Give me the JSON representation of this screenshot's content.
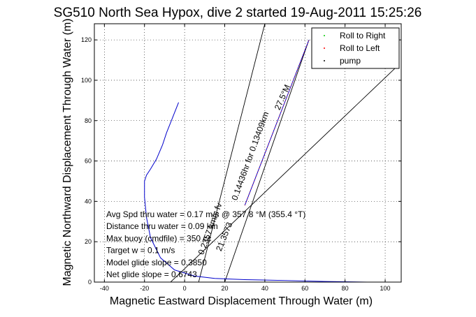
{
  "chart_data": {
    "type": "line",
    "title": "SG510 North Sea Hypox, dive 2 started 19-Aug-2011 15:25:26",
    "xlabel": "Magnetic Eastward Displacement Through Water (m)",
    "ylabel": "Magnetic Northward Displacement Through Water (m)",
    "xlim": [
      -45,
      108
    ],
    "ylim": [
      0,
      128
    ],
    "xticks": [
      -40,
      -20,
      0,
      20,
      40,
      60,
      80,
      100
    ],
    "yticks": [
      0,
      20,
      40,
      60,
      80,
      100,
      120
    ],
    "grid": true,
    "legend_placement": "top-right",
    "legend": [
      {
        "label": "Roll to Right",
        "color": "#00cc00"
      },
      {
        "label": "Roll to Left",
        "color": "#ff0000"
      },
      {
        "label": "pump",
        "color": "#000000"
      }
    ],
    "series": [
      {
        "color": "#0000cc",
        "x": [
          91,
          70,
          50,
          30,
          15,
          5,
          -5,
          -12,
          -17,
          -19,
          -20,
          -20,
          -19,
          -17,
          -14,
          -11,
          -9,
          -7,
          -5,
          -3
        ],
        "y": [
          0,
          0.3,
          0.8,
          1.2,
          1.8,
          3,
          6,
          12,
          22,
          32,
          42,
          50,
          53,
          56,
          61,
          68,
          74,
          79,
          84,
          89
        ]
      },
      {
        "color": "#0000cc",
        "x": [
          30,
          62
        ],
        "y": [
          38,
          120
        ]
      }
    ],
    "reference_lines": [
      {
        "color": "#000000",
        "x": [
          7,
          40
        ],
        "y": [
          0,
          128
        ]
      },
      {
        "color": "#000000",
        "x": [
          -7,
          105
        ],
        "y": [
          0,
          106
        ]
      },
      {
        "color": "#000000",
        "x": [
          20,
          62
        ],
        "y": [
          0,
          120
        ]
      }
    ],
    "annotations": [
      {
        "text": "27.5°M",
        "x": 50,
        "y": 91,
        "angle": -66
      },
      {
        "text": "0.14436hr for 0.13409km",
        "x": 34,
        "y": 62,
        "angle": -70
      },
      {
        "text": "0.2357 km/s fv",
        "x": 14,
        "y": 26,
        "angle": -70
      },
      {
        "text": "21.3573",
        "x": 21,
        "y": 22,
        "angle": -68
      }
    ],
    "info_lines": [
      "Avg Spd thru water = 0.17 m/s @ 357.8    °M (355.4 °T)",
      "Distance thru water = 0.09 km",
      "Max buoy (cmdfile) = 350 cc",
      "Target w = 0.1 m/s",
      "Model glide slope = 0.3850",
      "Net glide slope = 0.6743"
    ]
  }
}
